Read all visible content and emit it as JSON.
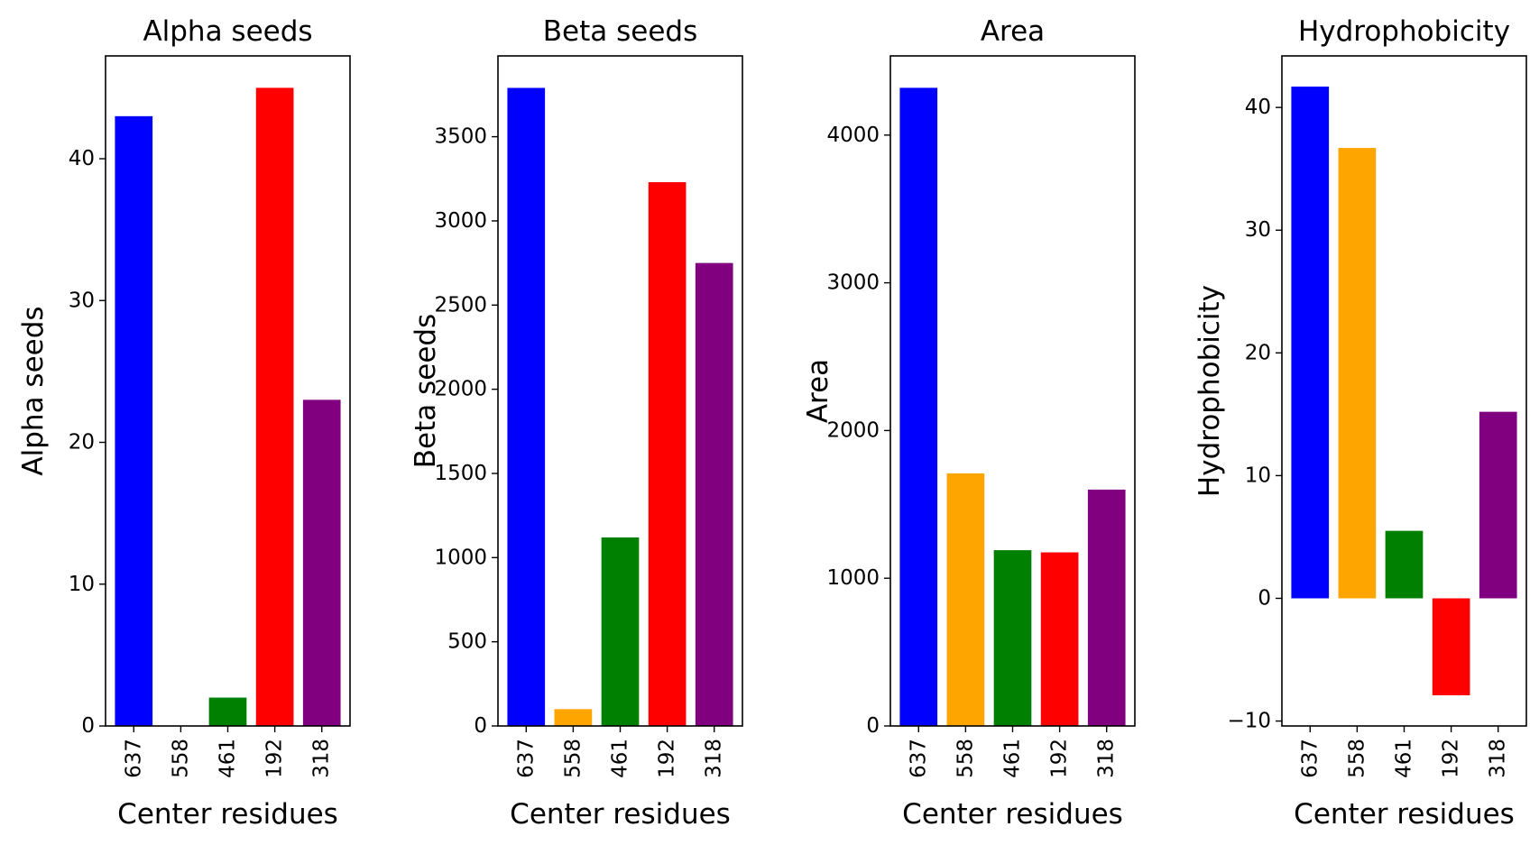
{
  "chart_data": [
    {
      "type": "bar",
      "title": "Alpha seeds",
      "xlabel": "Center residues",
      "ylabel": "Alpha seeds",
      "categories": [
        "637",
        "558",
        "461",
        "192",
        "318"
      ],
      "values": [
        43,
        0,
        2,
        45,
        23
      ],
      "colors": [
        "#0000ff",
        "#ffa500",
        "#008000",
        "#ff0000",
        "#800080"
      ],
      "ylim": [
        0,
        47.25
      ],
      "yticks": [
        0,
        10,
        20,
        30,
        40
      ],
      "ytick_labels": [
        "0",
        "10",
        "20",
        "30",
        "40"
      ]
    },
    {
      "type": "bar",
      "title": "Beta seeds",
      "xlabel": "Center residues",
      "ylabel": "Beta seeds",
      "categories": [
        "637",
        "558",
        "461",
        "192",
        "318"
      ],
      "values": [
        3790,
        100,
        1120,
        3230,
        2750
      ],
      "colors": [
        "#0000ff",
        "#ffa500",
        "#008000",
        "#ff0000",
        "#800080"
      ],
      "ylim": [
        0,
        3980
      ],
      "yticks": [
        0,
        500,
        1000,
        1500,
        2000,
        2500,
        3000,
        3500
      ],
      "ytick_labels": [
        "0",
        "500",
        "1000",
        "1500",
        "2000",
        "2500",
        "3000",
        "3500"
      ]
    },
    {
      "type": "bar",
      "title": "Area",
      "xlabel": "Center residues",
      "ylabel": "Area",
      "categories": [
        "637",
        "558",
        "461",
        "192",
        "318"
      ],
      "values": [
        4320,
        1710,
        1190,
        1175,
        1600
      ],
      "colors": [
        "#0000ff",
        "#ffa500",
        "#008000",
        "#ff0000",
        "#800080"
      ],
      "ylim": [
        0,
        4536
      ],
      "yticks": [
        0,
        1000,
        2000,
        3000,
        4000
      ],
      "ytick_labels": [
        "0",
        "1000",
        "2000",
        "3000",
        "4000"
      ]
    },
    {
      "type": "bar",
      "title": "Hydrophobicity",
      "xlabel": "Center residues",
      "ylabel": "Hydrophobicity",
      "categories": [
        "637",
        "558",
        "461",
        "192",
        "318"
      ],
      "values": [
        41.7,
        36.7,
        5.5,
        -7.9,
        15.2
      ],
      "colors": [
        "#0000ff",
        "#ffa500",
        "#008000",
        "#ff0000",
        "#800080"
      ],
      "ylim": [
        -10.4,
        44.2
      ],
      "yticks": [
        -10,
        0,
        10,
        20,
        30,
        40
      ],
      "ytick_labels": [
        "−10",
        "0",
        "10",
        "20",
        "30",
        "40"
      ]
    }
  ]
}
